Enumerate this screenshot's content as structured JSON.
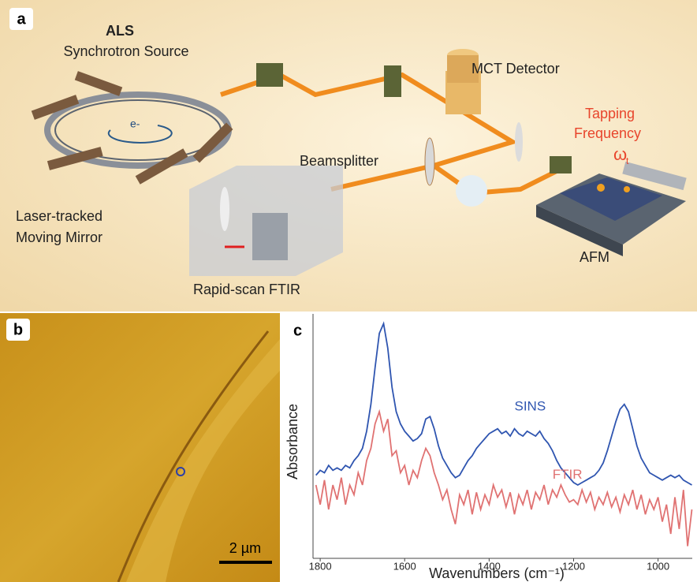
{
  "panel_a": {
    "label": "a",
    "source_title": "ALS",
    "source_subtitle": "Synchrotron Source",
    "electron": "e-",
    "detector": "MCT Detector",
    "tapping_line1": "Tapping",
    "tapping_line2": "Frequency",
    "omega": "ω",
    "omega_subscript": "t",
    "beamsplitter": "Beamsplitter",
    "mirror_line1": "Laser-tracked",
    "mirror_line2": "Moving Mirror",
    "ftir": "Rapid-scan FTIR",
    "afm": "AFM"
  },
  "panel_b": {
    "label": "b",
    "scale_bar": "2 µm"
  },
  "panel_c": {
    "label": "c"
  },
  "chart_data": {
    "type": "line",
    "x_label": "Wavenumbers (cm⁻¹)",
    "y_label": "Absorbance",
    "x": [
      1810,
      1800,
      1790,
      1780,
      1770,
      1760,
      1750,
      1740,
      1730,
      1720,
      1710,
      1700,
      1690,
      1680,
      1670,
      1660,
      1650,
      1640,
      1630,
      1620,
      1610,
      1600,
      1590,
      1580,
      1570,
      1560,
      1550,
      1540,
      1530,
      1520,
      1510,
      1500,
      1490,
      1480,
      1470,
      1460,
      1450,
      1440,
      1430,
      1420,
      1410,
      1400,
      1390,
      1380,
      1370,
      1360,
      1350,
      1340,
      1330,
      1320,
      1310,
      1300,
      1290,
      1280,
      1270,
      1260,
      1250,
      1240,
      1230,
      1220,
      1210,
      1200,
      1190,
      1180,
      1170,
      1160,
      1150,
      1140,
      1130,
      1120,
      1110,
      1100,
      1090,
      1080,
      1070,
      1060,
      1050,
      1040,
      1030,
      1020,
      1010,
      1000,
      990,
      980,
      970,
      960,
      950,
      940,
      930,
      920
    ],
    "xlim": [
      1817,
      919
    ],
    "xticks": [
      1800,
      1600,
      1400,
      1200,
      1000
    ],
    "ylim": [
      0,
      100
    ],
    "series": [
      {
        "name": "SINS",
        "color": "#2f55b0",
        "values": [
          34,
          36,
          35,
          38,
          36,
          37,
          36,
          38,
          37,
          40,
          42,
          45,
          52,
          63,
          78,
          92,
          96,
          86,
          70,
          60,
          55,
          52,
          50,
          48,
          49,
          51,
          57,
          58,
          53,
          46,
          41,
          38,
          35,
          33,
          34,
          37,
          40,
          42,
          45,
          47,
          49,
          51,
          52,
          53,
          51,
          52,
          50,
          53,
          51,
          50,
          52,
          51,
          50,
          52,
          49,
          47,
          44,
          40,
          37,
          35,
          33,
          31,
          30,
          31,
          32,
          33,
          34,
          36,
          39,
          44,
          50,
          56,
          61,
          63,
          60,
          53,
          46,
          41,
          38,
          35,
          34,
          33,
          32,
          33,
          34,
          33,
          34,
          32,
          31,
          30
        ]
      },
      {
        "name": "FTIR",
        "color": "#e07272",
        "values": [
          30,
          22,
          32,
          20,
          30,
          24,
          33,
          22,
          30,
          26,
          35,
          30,
          40,
          45,
          55,
          60,
          52,
          57,
          42,
          44,
          35,
          38,
          30,
          36,
          33,
          40,
          45,
          42,
          35,
          30,
          24,
          28,
          20,
          14,
          26,
          22,
          28,
          18,
          27,
          20,
          26,
          22,
          30,
          25,
          28,
          21,
          27,
          18,
          26,
          22,
          28,
          20,
          27,
          24,
          30,
          22,
          28,
          25,
          30,
          26,
          23,
          24,
          22,
          28,
          23,
          27,
          20,
          25,
          22,
          27,
          21,
          25,
          19,
          26,
          22,
          28,
          20,
          26,
          18,
          24,
          20,
          25,
          15,
          22,
          10,
          25,
          12,
          28,
          5,
          20
        ]
      }
    ]
  }
}
